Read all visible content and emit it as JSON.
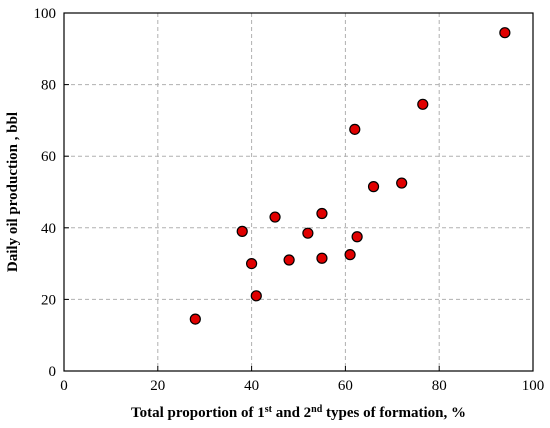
{
  "chart_data": {
    "type": "scatter",
    "title": "",
    "xlabel": "Total proportion of 1st and 2nd types of formation, %",
    "xlabel_parts": {
      "prefix": "Total proportion of 1",
      "sup1": "st",
      "middle": " and 2",
      "sup2": "nd",
      "suffix": " types of formation, %"
    },
    "ylabel": "Daily oil production , bbl",
    "xlim": [
      0,
      100
    ],
    "ylim": [
      0,
      100
    ],
    "xticks": [
      0,
      20,
      40,
      60,
      80,
      100
    ],
    "yticks": [
      0,
      20,
      40,
      60,
      80,
      100
    ],
    "grid": true,
    "marker_color": "#e00000",
    "series": [
      {
        "points": [
          {
            "x": 28,
            "y": 14.5
          },
          {
            "x": 38,
            "y": 39
          },
          {
            "x": 40,
            "y": 30
          },
          {
            "x": 41,
            "y": 21
          },
          {
            "x": 45,
            "y": 43
          },
          {
            "x": 48,
            "y": 31
          },
          {
            "x": 52,
            "y": 38.5
          },
          {
            "x": 55,
            "y": 44
          },
          {
            "x": 55,
            "y": 31.5
          },
          {
            "x": 61,
            "y": 32.5
          },
          {
            "x": 62,
            "y": 67.5
          },
          {
            "x": 62.5,
            "y": 37.5
          },
          {
            "x": 66,
            "y": 51.5
          },
          {
            "x": 72,
            "y": 52.5
          },
          {
            "x": 76.5,
            "y": 74.5
          },
          {
            "x": 94,
            "y": 94.5
          }
        ]
      }
    ]
  }
}
